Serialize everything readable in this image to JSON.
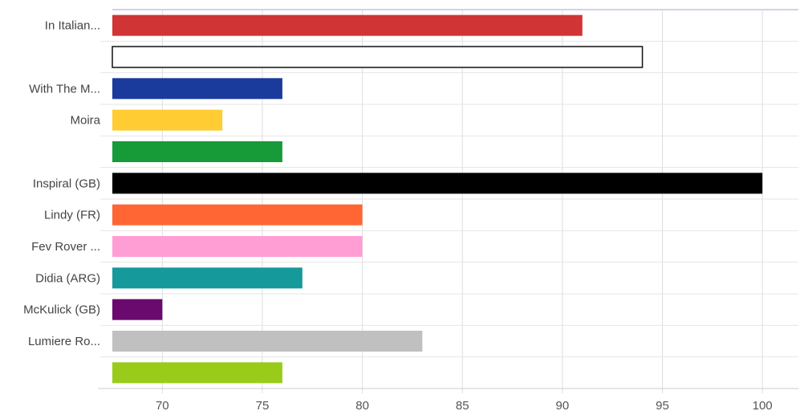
{
  "chart_data": {
    "type": "bar",
    "orientation": "horizontal",
    "title": "",
    "xlabel": "",
    "ylabel": "",
    "xlim": [
      67.5,
      101.8
    ],
    "x_ticks": [
      70,
      75,
      80,
      85,
      90,
      95,
      100
    ],
    "grid": true,
    "legend": "none",
    "categories": [
      "In Italian...",
      "",
      "With The M...",
      "Moira",
      "",
      "Inspiral (GB)",
      "Lindy (FR)",
      "Fev Rover ...",
      "Didia (ARG)",
      "McKulick (GB)",
      "Lumiere Ro...",
      ""
    ],
    "values": [
      91,
      94,
      76,
      73,
      76,
      100,
      80,
      80,
      77,
      70,
      83,
      76
    ],
    "colors": [
      "#d13434",
      "#ffffff",
      "#1a3a9c",
      "#ffcc33",
      "#169b38",
      "#000000",
      "#ff6633",
      "#ff9ed4",
      "#16999b",
      "#6b0a6e",
      "#c0c0c0",
      "#99cc1a"
    ],
    "outlined": [
      false,
      true,
      false,
      false,
      false,
      false,
      false,
      false,
      false,
      false,
      false,
      false
    ]
  }
}
